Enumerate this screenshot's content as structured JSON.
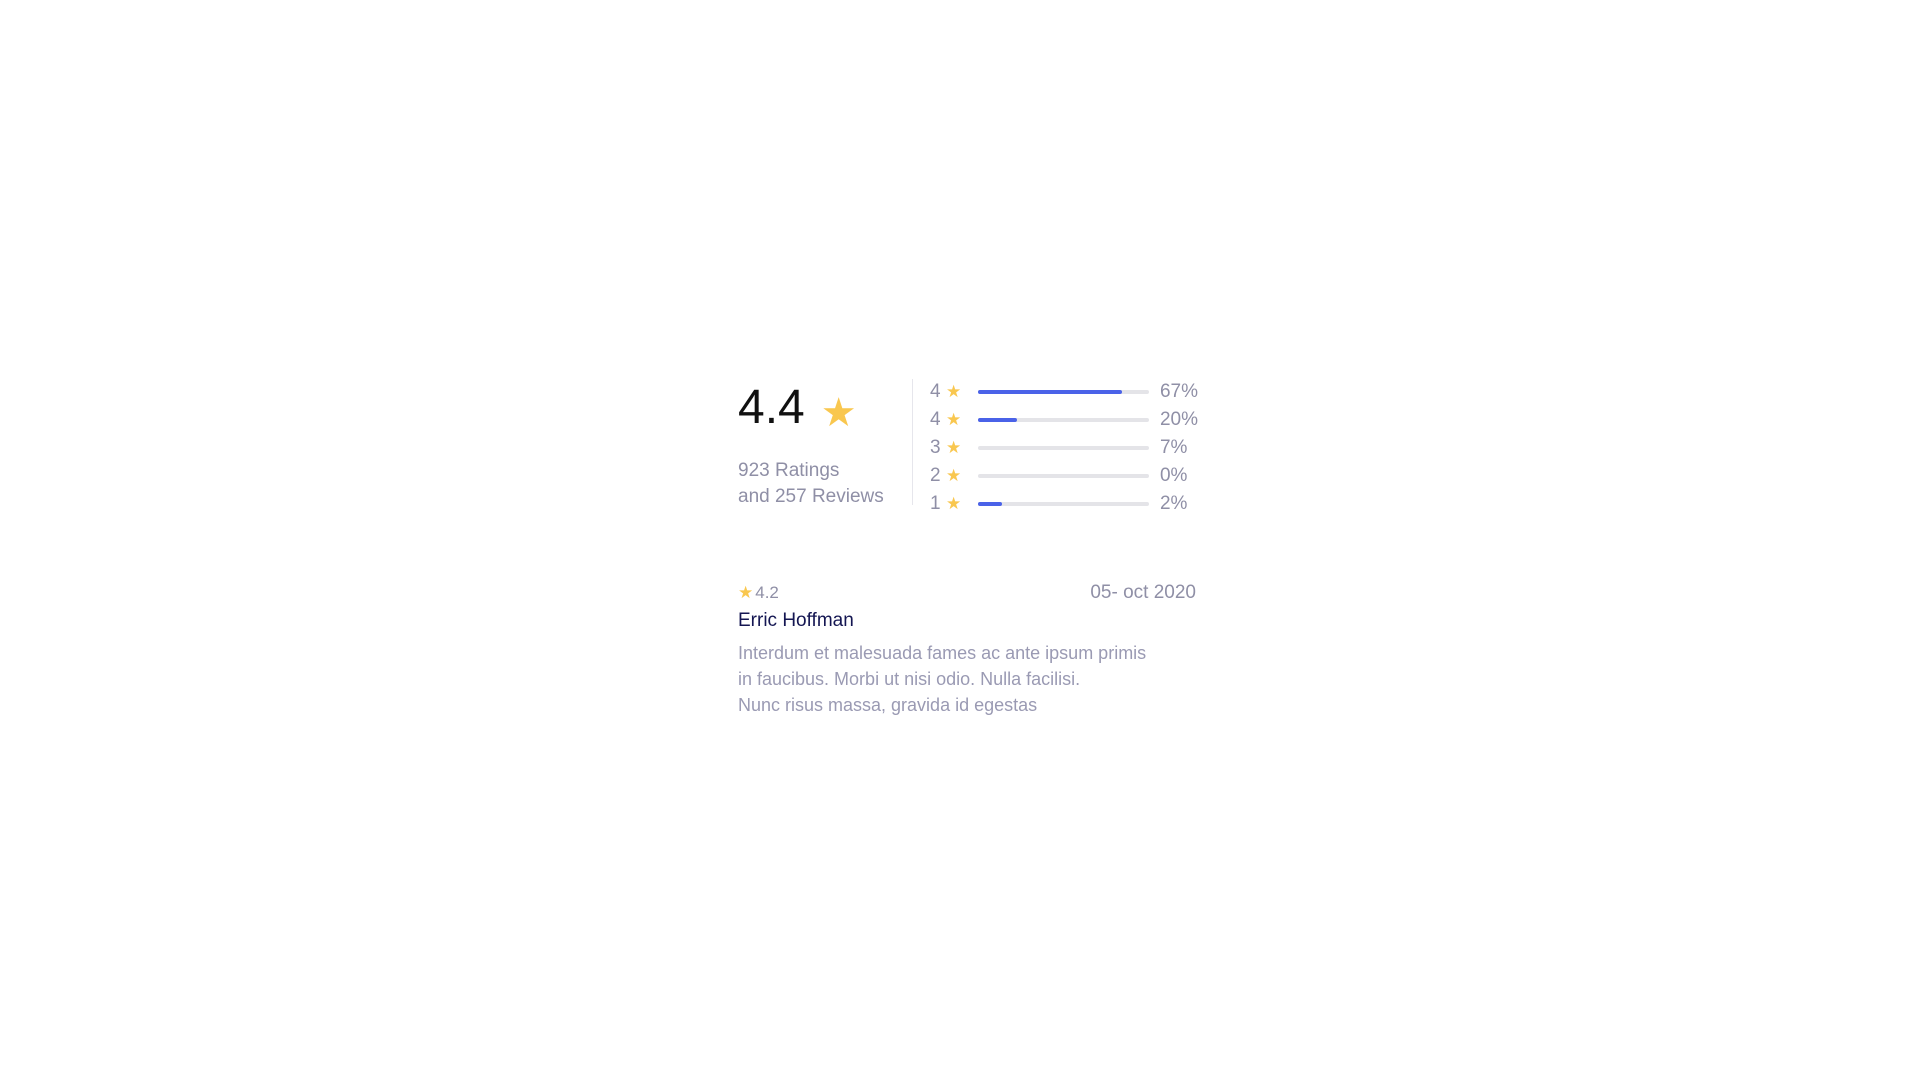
{
  "summary": {
    "average": "4.4",
    "star_icon": "star-icon",
    "ratings_text": "923 Ratings",
    "reviews_text": "and 257 Reviews"
  },
  "distribution": [
    {
      "stars": "4",
      "percent_label": "67%",
      "fill": 0.84
    },
    {
      "stars": "4",
      "percent_label": "20%",
      "fill": 0.23
    },
    {
      "stars": "3",
      "percent_label": "7%",
      "fill": 0
    },
    {
      "stars": "2",
      "percent_label": "0%",
      "fill": 0
    },
    {
      "stars": "1",
      "percent_label": "2%",
      "fill": 0.14
    }
  ],
  "review": {
    "rating": "4.2",
    "date": "05- oct 2020",
    "author": "Erric Hoffman",
    "text_lines": [
      "Interdum et malesuada fames ac ante ipsum primis",
      "in faucibus. Morbi ut nisi odio. Nulla facilisi.",
      "Nunc risus massa, gravida id egestas"
    ]
  },
  "colors": {
    "accent": "#4a62e8",
    "star": "#f9c74f",
    "track": "#e4e4e8",
    "muted_text": "#8f8fa6",
    "author_text": "#141652"
  }
}
